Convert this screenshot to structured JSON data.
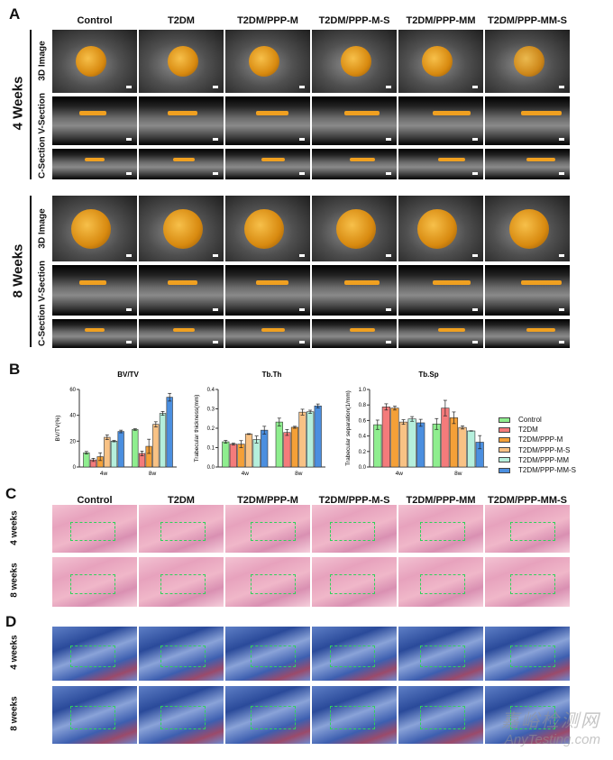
{
  "panels": {
    "a": "A",
    "b": "B",
    "c": "C",
    "d": "D"
  },
  "groups": [
    "Control",
    "T2DM",
    "T2DM/PPP-M",
    "T2DM/PPP-M-S",
    "T2DM/PPP-MM",
    "T2DM/PPP-MM-S"
  ],
  "panel_a": {
    "timepoints": [
      "4 Weeks",
      "8 Weeks"
    ],
    "row_labels": {
      "image3d": "3D Image",
      "sections": "C-Section V-Section"
    }
  },
  "panel_cd": {
    "timepoints": [
      "4 weeks",
      "8 weeks"
    ]
  },
  "colors": {
    "Control": "#8fee8f",
    "T2DM": "#f47b7b",
    "T2DM/PPP-M": "#f4a038",
    "T2DM/PPP-M-S": "#f8c285",
    "T2DM/PPP-MM": "#b5efdc",
    "T2DM/PPP-MM-S": "#4b8fe0"
  },
  "chart_data": [
    {
      "type": "bar",
      "title": "BV/TV",
      "ylabel": "BV/TV(%)",
      "categories": [
        "4w",
        "8w"
      ],
      "ylim": [
        0,
        60
      ],
      "yticks": [
        "0",
        "20",
        "40",
        "60"
      ],
      "tickvals": [
        0,
        20,
        40,
        60
      ],
      "series": [
        {
          "name": "Control",
          "values": [
            11,
            29
          ],
          "err": [
            1,
            0.6
          ]
        },
        {
          "name": "T2DM",
          "values": [
            5.5,
            10.5
          ],
          "err": [
            1.2,
            1.8
          ]
        },
        {
          "name": "T2DM/PPP-M",
          "values": [
            8,
            16
          ],
          "err": [
            3,
            5.5
          ]
        },
        {
          "name": "T2DM/PPP-M-S",
          "values": [
            23,
            33
          ],
          "err": [
            1.8,
            2
          ]
        },
        {
          "name": "T2DM/PPP-MM",
          "values": [
            20,
            41.5
          ],
          "err": [
            0.5,
            1.5
          ]
        },
        {
          "name": "T2DM/PPP-MM-S",
          "values": [
            27.5,
            54
          ],
          "err": [
            1,
            3
          ]
        }
      ]
    },
    {
      "type": "bar",
      "title": "Tb.Th",
      "ylabel": "Trabecular thickness(mm)",
      "categories": [
        "4w",
        "8w"
      ],
      "ylim": [
        0,
        0.4
      ],
      "yticks": [
        "0.0",
        "0.1",
        "0.2",
        "0.3",
        "0.4"
      ],
      "tickvals": [
        0,
        0.1,
        0.2,
        0.3,
        0.4
      ],
      "series": [
        {
          "name": "Control",
          "values": [
            0.13,
            0.232
          ],
          "err": [
            0.007,
            0.02
          ]
        },
        {
          "name": "T2DM",
          "values": [
            0.118,
            0.178
          ],
          "err": [
            0.005,
            0.015
          ]
        },
        {
          "name": "T2DM/PPP-M",
          "values": [
            0.118,
            0.205
          ],
          "err": [
            0.018,
            0.005
          ]
        },
        {
          "name": "T2DM/PPP-M-S",
          "values": [
            0.17,
            0.283
          ],
          "err": [
            0.002,
            0.015
          ]
        },
        {
          "name": "T2DM/PPP-MM",
          "values": [
            0.142,
            0.285
          ],
          "err": [
            0.018,
            0.008
          ]
        },
        {
          "name": "T2DM/PPP-MM-S",
          "values": [
            0.19,
            0.315
          ],
          "err": [
            0.02,
            0.01
          ]
        }
      ]
    },
    {
      "type": "bar",
      "title": "Tb.Sp",
      "ylabel": "Trabecular separation(1/mm)",
      "categories": [
        "4w",
        "8w"
      ],
      "ylim": [
        0,
        1.0
      ],
      "yticks": [
        "0.0",
        "0.2",
        "0.4",
        "0.6",
        "0.8",
        "1.0"
      ],
      "tickvals": [
        0,
        0.2,
        0.4,
        0.6,
        0.8,
        1.0
      ],
      "series": [
        {
          "name": "Control",
          "values": [
            0.545,
            0.555
          ],
          "err": [
            0.06,
            0.07
          ]
        },
        {
          "name": "T2DM",
          "values": [
            0.775,
            0.76
          ],
          "err": [
            0.04,
            0.1
          ]
        },
        {
          "name": "T2DM/PPP-M",
          "values": [
            0.76,
            0.635
          ],
          "err": [
            0.025,
            0.075
          ]
        },
        {
          "name": "T2DM/PPP-M-S",
          "values": [
            0.58,
            0.51
          ],
          "err": [
            0.03,
            0.02
          ]
        },
        {
          "name": "T2DM/PPP-MM",
          "values": [
            0.62,
            0.465
          ],
          "err": [
            0.03,
            0.003
          ]
        },
        {
          "name": "T2DM/PPP-MM-S",
          "values": [
            0.57,
            0.32
          ],
          "err": [
            0.045,
            0.085
          ]
        }
      ]
    }
  ],
  "watermark": {
    "cn": "嘉峪检测网",
    "en": "AnyTesting.com"
  }
}
